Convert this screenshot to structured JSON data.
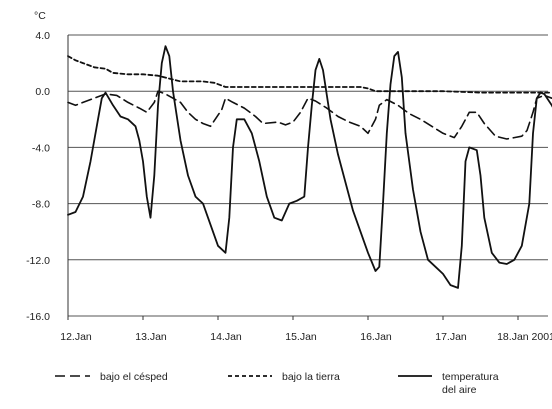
{
  "chart_data": {
    "type": "line",
    "title": "",
    "ylabel": "°C",
    "xlabel": "",
    "ylim": [
      -16.0,
      4.0
    ],
    "xlim": [
      0,
      6.55
    ],
    "y_ticks": [
      "4.0",
      "0.0",
      "-4.0",
      "-8.0",
      "-12.0",
      "-16.0"
    ],
    "y_tick_values": [
      4,
      0,
      -4,
      -8,
      -12,
      -16
    ],
    "x_ticks": [
      "12.Jan",
      "13.Jan",
      "14.Jan",
      "15.Jan",
      "16.Jan",
      "17.Jan",
      "18.Jan 2001"
    ],
    "x_tick_values": [
      0,
      1,
      2,
      3,
      4,
      5,
      6
    ],
    "grid": "horizontal",
    "legend_position": "bottom",
    "series": [
      {
        "name": "bajo el césped",
        "style": "dashed",
        "points": [
          [
            0.0,
            -0.8
          ],
          [
            0.1,
            -1.0
          ],
          [
            0.2,
            -0.8
          ],
          [
            0.35,
            -0.5
          ],
          [
            0.5,
            -0.2
          ],
          [
            0.65,
            -0.3
          ],
          [
            0.8,
            -0.8
          ],
          [
            0.95,
            -1.2
          ],
          [
            1.05,
            -1.5
          ],
          [
            1.15,
            -0.8
          ],
          [
            1.2,
            0.0
          ],
          [
            1.3,
            -0.2
          ],
          [
            1.4,
            -0.5
          ],
          [
            1.5,
            -0.8
          ],
          [
            1.6,
            -1.5
          ],
          [
            1.7,
            -2.0
          ],
          [
            1.8,
            -2.3
          ],
          [
            1.9,
            -2.5
          ],
          [
            2.05,
            -1.3
          ],
          [
            2.1,
            -0.5
          ],
          [
            2.2,
            -0.8
          ],
          [
            2.35,
            -1.2
          ],
          [
            2.5,
            -1.8
          ],
          [
            2.6,
            -2.3
          ],
          [
            2.8,
            -2.2
          ],
          [
            2.9,
            -2.4
          ],
          [
            3.0,
            -2.2
          ],
          [
            3.1,
            -1.5
          ],
          [
            3.2,
            -0.5
          ],
          [
            3.3,
            -0.7
          ],
          [
            3.45,
            -1.2
          ],
          [
            3.6,
            -1.8
          ],
          [
            3.75,
            -2.2
          ],
          [
            3.9,
            -2.5
          ],
          [
            4.0,
            -3.0
          ],
          [
            4.1,
            -2.0
          ],
          [
            4.15,
            -1.0
          ],
          [
            4.25,
            -0.6
          ],
          [
            4.4,
            -1.0
          ],
          [
            4.55,
            -1.6
          ],
          [
            4.7,
            -2.0
          ],
          [
            4.85,
            -2.5
          ],
          [
            5.0,
            -3.0
          ],
          [
            5.15,
            -3.3
          ],
          [
            5.25,
            -2.5
          ],
          [
            5.35,
            -1.5
          ],
          [
            5.45,
            -1.5
          ],
          [
            5.55,
            -2.3
          ],
          [
            5.7,
            -3.2
          ],
          [
            5.85,
            -3.4
          ],
          [
            5.95,
            -3.3
          ],
          [
            6.05,
            -3.2
          ],
          [
            6.12,
            -2.8
          ],
          [
            6.2,
            -1.5
          ],
          [
            6.25,
            -0.5
          ],
          [
            6.35,
            -0.3
          ],
          [
            6.45,
            -0.5
          ]
        ]
      },
      {
        "name": "bajo la tierra",
        "style": "dotted",
        "points": [
          [
            0.0,
            2.5
          ],
          [
            0.1,
            2.2
          ],
          [
            0.2,
            2.0
          ],
          [
            0.35,
            1.7
          ],
          [
            0.5,
            1.6
          ],
          [
            0.6,
            1.3
          ],
          [
            0.8,
            1.2
          ],
          [
            1.0,
            1.2
          ],
          [
            1.2,
            1.1
          ],
          [
            1.35,
            0.9
          ],
          [
            1.5,
            0.7
          ],
          [
            1.8,
            0.7
          ],
          [
            1.95,
            0.6
          ],
          [
            2.1,
            0.3
          ],
          [
            2.4,
            0.3
          ],
          [
            2.7,
            0.3
          ],
          [
            3.0,
            0.3
          ],
          [
            3.3,
            0.3
          ],
          [
            3.6,
            0.3
          ],
          [
            3.9,
            0.3
          ],
          [
            4.0,
            0.2
          ],
          [
            4.1,
            0.0
          ],
          [
            4.5,
            0.0
          ],
          [
            5.0,
            0.0
          ],
          [
            5.5,
            -0.1
          ],
          [
            6.0,
            -0.1
          ],
          [
            6.45,
            -0.1
          ]
        ]
      },
      {
        "name": "temperatura del aire",
        "style": "solid",
        "points": [
          [
            0.0,
            -8.8
          ],
          [
            0.1,
            -8.6
          ],
          [
            0.2,
            -7.5
          ],
          [
            0.3,
            -5.0
          ],
          [
            0.4,
            -2.0
          ],
          [
            0.45,
            -0.5
          ],
          [
            0.5,
            -0.1
          ],
          [
            0.6,
            -1.0
          ],
          [
            0.7,
            -1.8
          ],
          [
            0.8,
            -2.0
          ],
          [
            0.9,
            -2.5
          ],
          [
            0.95,
            -3.5
          ],
          [
            1.0,
            -5.0
          ],
          [
            1.05,
            -7.5
          ],
          [
            1.1,
            -9.0
          ],
          [
            1.15,
            -6.0
          ],
          [
            1.2,
            -1.0
          ],
          [
            1.25,
            2.0
          ],
          [
            1.3,
            3.2
          ],
          [
            1.35,
            2.5
          ],
          [
            1.4,
            0.0
          ],
          [
            1.5,
            -3.5
          ],
          [
            1.6,
            -6.0
          ],
          [
            1.7,
            -7.5
          ],
          [
            1.8,
            -8.0
          ],
          [
            1.9,
            -9.5
          ],
          [
            2.0,
            -11.0
          ],
          [
            2.1,
            -11.5
          ],
          [
            2.15,
            -9.0
          ],
          [
            2.2,
            -4.0
          ],
          [
            2.25,
            -2.0
          ],
          [
            2.35,
            -2.0
          ],
          [
            2.45,
            -3.0
          ],
          [
            2.55,
            -5.0
          ],
          [
            2.65,
            -7.5
          ],
          [
            2.75,
            -9.0
          ],
          [
            2.85,
            -9.2
          ],
          [
            2.95,
            -8.0
          ],
          [
            3.05,
            -7.8
          ],
          [
            3.15,
            -7.5
          ],
          [
            3.2,
            -4.0
          ],
          [
            3.25,
            -1.0
          ],
          [
            3.3,
            1.5
          ],
          [
            3.35,
            2.3
          ],
          [
            3.4,
            1.5
          ],
          [
            3.5,
            -2.0
          ],
          [
            3.6,
            -4.5
          ],
          [
            3.7,
            -6.5
          ],
          [
            3.8,
            -8.5
          ],
          [
            3.9,
            -10.0
          ],
          [
            4.0,
            -11.5
          ],
          [
            4.1,
            -12.8
          ],
          [
            4.15,
            -12.5
          ],
          [
            4.2,
            -8.0
          ],
          [
            4.25,
            -3.0
          ],
          [
            4.3,
            0.5
          ],
          [
            4.35,
            2.5
          ],
          [
            4.4,
            2.8
          ],
          [
            4.45,
            1.0
          ],
          [
            4.5,
            -3.0
          ],
          [
            4.6,
            -7.0
          ],
          [
            4.7,
            -10.0
          ],
          [
            4.8,
            -12.0
          ],
          [
            4.9,
            -12.5
          ],
          [
            5.0,
            -13.0
          ],
          [
            5.1,
            -13.8
          ],
          [
            5.2,
            -14.0
          ],
          [
            5.25,
            -11.0
          ],
          [
            5.3,
            -5.0
          ],
          [
            5.35,
            -4.0
          ],
          [
            5.45,
            -4.2
          ],
          [
            5.5,
            -6.0
          ],
          [
            5.55,
            -9.0
          ],
          [
            5.65,
            -11.5
          ],
          [
            5.75,
            -12.2
          ],
          [
            5.85,
            -12.3
          ],
          [
            5.95,
            -12.0
          ],
          [
            6.05,
            -11.0
          ],
          [
            6.15,
            -8.0
          ],
          [
            6.2,
            -3.0
          ],
          [
            6.25,
            -0.5
          ],
          [
            6.3,
            -0.1
          ],
          [
            6.35,
            -0.2
          ],
          [
            6.45,
            -1.0
          ],
          [
            6.55,
            -2.0
          ]
        ]
      }
    ]
  }
}
